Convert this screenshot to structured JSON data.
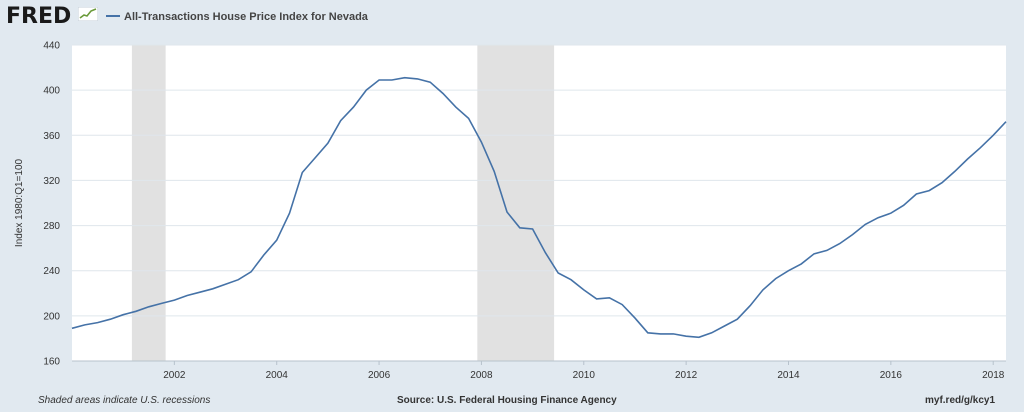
{
  "header": {
    "logo_text": "FRED",
    "logo_icon": "line-chart-icon",
    "series_legend": "All-Transactions House Price Index for Nevada"
  },
  "footer": {
    "recession_note": "Shaded areas indicate U.S. recessions",
    "source": "Source: U.S. Federal Housing Finance Agency",
    "short_url": "myf.red/g/kcy1"
  },
  "colors": {
    "series": "#4572a7",
    "recession": "#e1e1e1",
    "plot_bg": "#ffffff",
    "page_bg": "#e1e9f0",
    "grid": "#dfe6ec"
  },
  "chart_data": {
    "type": "line",
    "title": "",
    "xlabel": "",
    "ylabel": "Index 1980:Q1=100",
    "ylim": [
      160,
      440
    ],
    "xlim": [
      2000.0,
      2018.25
    ],
    "y_ticks": [
      160,
      200,
      240,
      280,
      320,
      360,
      400,
      440
    ],
    "x_tick_labels": [
      "2002",
      "2004",
      "2006",
      "2008",
      "2010",
      "2012",
      "2014",
      "2016",
      "2018"
    ],
    "x_tick_values": [
      2002,
      2004,
      2006,
      2008,
      2010,
      2012,
      2014,
      2016,
      2018
    ],
    "grid": "horizontal",
    "recessions": [
      [
        2001.17,
        2001.83
      ],
      [
        2007.92,
        2009.42
      ]
    ],
    "series": [
      {
        "name": "All-Transactions House Price Index for Nevada",
        "x": [
          2000.0,
          2000.25,
          2000.5,
          2000.75,
          2001.0,
          2001.25,
          2001.5,
          2001.75,
          2002.0,
          2002.25,
          2002.5,
          2002.75,
          2003.0,
          2003.25,
          2003.5,
          2003.75,
          2004.0,
          2004.25,
          2004.5,
          2004.75,
          2005.0,
          2005.25,
          2005.5,
          2005.75,
          2006.0,
          2006.25,
          2006.5,
          2006.75,
          2007.0,
          2007.25,
          2007.5,
          2007.75,
          2008.0,
          2008.25,
          2008.5,
          2008.75,
          2009.0,
          2009.25,
          2009.5,
          2009.75,
          2010.0,
          2010.25,
          2010.5,
          2010.75,
          2011.0,
          2011.25,
          2011.5,
          2011.75,
          2012.0,
          2012.25,
          2012.5,
          2012.75,
          2013.0,
          2013.25,
          2013.5,
          2013.75,
          2014.0,
          2014.25,
          2014.5,
          2014.75,
          2015.0,
          2015.25,
          2015.5,
          2015.75,
          2016.0,
          2016.25,
          2016.5,
          2016.75,
          2017.0,
          2017.25,
          2017.5,
          2017.75,
          2018.0,
          2018.25
        ],
        "values": [
          189,
          192,
          194,
          197,
          201,
          204,
          208,
          211,
          214,
          218,
          221,
          224,
          228,
          232,
          239,
          254,
          267,
          291,
          327,
          340,
          353,
          373,
          385,
          400,
          409,
          409,
          411,
          410,
          407,
          397,
          385,
          375,
          354,
          328,
          292,
          278,
          277,
          256,
          238,
          232,
          223,
          215,
          216,
          210,
          198,
          185,
          184,
          184,
          182,
          181,
          185,
          191,
          197,
          209,
          223,
          233,
          240,
          246,
          255,
          258,
          264,
          272,
          281,
          287,
          291,
          298,
          308,
          311,
          318,
          328,
          339,
          349,
          360,
          372
        ]
      }
    ]
  }
}
